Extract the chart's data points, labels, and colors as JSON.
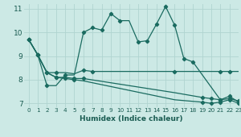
{
  "xlabel": "Humidex (Indice chaleur)",
  "background_color": "#cce9e5",
  "grid_color": "#b0d4d0",
  "line_color": "#1a6b60",
  "xlim": [
    -0.5,
    23
  ],
  "ylim": [
    6.85,
    11.2
  ],
  "yticks": [
    7,
    8,
    9,
    10,
    11
  ],
  "xticks": [
    0,
    1,
    2,
    3,
    4,
    5,
    6,
    7,
    8,
    9,
    10,
    11,
    12,
    13,
    14,
    15,
    16,
    17,
    18,
    19,
    20,
    21,
    22,
    23
  ],
  "line1_x": [
    0,
    1,
    2,
    3,
    4,
    5,
    6,
    7,
    16,
    18,
    21,
    22,
    23
  ],
  "line1_y": [
    9.7,
    9.05,
    8.3,
    8.3,
    8.3,
    8.25,
    8.4,
    8.35,
    8.35,
    8.35,
    8.35,
    8.35,
    8.35
  ],
  "line2_x": [
    0,
    1,
    2,
    3,
    4,
    5,
    6,
    7,
    8,
    9,
    10,
    11,
    12,
    13,
    14,
    15,
    16,
    17,
    18,
    21,
    22,
    23
  ],
  "line2_y": [
    9.7,
    9.05,
    7.75,
    7.75,
    8.2,
    8.2,
    10.0,
    10.2,
    10.1,
    10.8,
    10.5,
    10.5,
    9.6,
    9.65,
    10.35,
    11.1,
    10.3,
    8.9,
    8.75,
    7.15,
    7.3,
    7.05
  ],
  "line3_x": [
    0,
    1,
    2,
    3,
    4,
    5,
    6,
    16,
    19,
    20,
    21,
    22,
    23
  ],
  "line3_y": [
    9.7,
    9.05,
    8.3,
    8.1,
    8.1,
    8.05,
    8.05,
    7.45,
    7.25,
    7.2,
    7.15,
    7.2,
    7.1
  ],
  "line4_x": [
    0,
    1,
    2,
    3,
    4,
    5,
    6,
    16,
    19,
    20,
    21,
    22,
    23
  ],
  "line4_y": [
    9.7,
    9.05,
    8.3,
    8.1,
    8.05,
    8.0,
    7.95,
    7.15,
    7.05,
    7.0,
    7.05,
    7.15,
    7.0
  ],
  "markers1_x": [
    0,
    1,
    2,
    3,
    6,
    7,
    16,
    21,
    22
  ],
  "markers1_y": [
    9.7,
    9.05,
    8.3,
    8.3,
    8.4,
    8.35,
    8.35,
    8.35,
    8.35
  ],
  "markers2_x": [
    0,
    1,
    2,
    4,
    6,
    7,
    8,
    9,
    10,
    12,
    13,
    14,
    15,
    16,
    17,
    18,
    21,
    22,
    23
  ],
  "markers2_y": [
    9.7,
    9.05,
    7.75,
    8.2,
    10.0,
    10.2,
    10.1,
    10.8,
    10.5,
    9.6,
    9.65,
    10.35,
    11.1,
    10.3,
    8.9,
    8.75,
    7.15,
    7.3,
    7.05
  ],
  "markers3_x": [
    0,
    1,
    2,
    3,
    5,
    6,
    19,
    20,
    21,
    22,
    23
  ],
  "markers3_y": [
    9.7,
    9.05,
    8.3,
    8.1,
    8.05,
    8.05,
    7.25,
    7.2,
    7.15,
    7.2,
    7.1
  ],
  "markers4_x": [
    0,
    1,
    3,
    4,
    5,
    19,
    20,
    21,
    22,
    23
  ],
  "markers4_y": [
    9.7,
    9.05,
    8.1,
    8.05,
    8.0,
    7.05,
    7.0,
    7.05,
    7.15,
    7.0
  ]
}
